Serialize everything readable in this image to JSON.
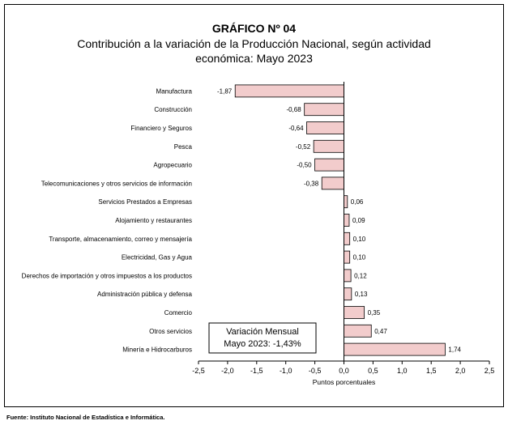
{
  "title": "GRÁFICO Nº 04",
  "subtitle": "Contribución a la variación de la Producción Nacional, según actividad económica: Mayo 2023",
  "source": "Fuente:  Instituto Nacional de Estadística e Informática.",
  "annotation": {
    "line1": "Variación Mensual",
    "line2": "Mayo 2023: -1,43%"
  },
  "colors": {
    "bar_fill": "#f2cccc",
    "bar_stroke": "#000000"
  },
  "chart_data": {
    "type": "bar",
    "orientation": "horizontal",
    "title": "GRÁFICO Nº 04",
    "subtitle": "Contribución a la variación de la Producción Nacional, según actividad económica: Mayo 2023",
    "xlabel": "Puntos porcentuales",
    "ylabel": "",
    "xlim": [
      -2.5,
      2.5
    ],
    "xticks": [
      "-2,5",
      "-2,0",
      "-1,5",
      "-1,0",
      "-0,5",
      "0,0",
      "0,5",
      "1,0",
      "1,5",
      "2,0",
      "2,5"
    ],
    "grid": false,
    "categories": [
      "Manufactura",
      "Construcción",
      "Financiero y Seguros",
      "Pesca",
      "Agropecuario",
      "Telecomunicaciones y otros servicios de información",
      "Servicios Prestados a Empresas",
      "Alojamiento y restaurantes",
      "Transporte, almacenamiento, correo y mensajería",
      "Electricidad, Gas y Agua",
      "Derechos de importación y otros impuestos a los productos",
      "Administración pública y defensa",
      "Comercio",
      "Otros servicios",
      "Minería e Hidrocarburos"
    ],
    "values": [
      -1.87,
      -0.68,
      -0.64,
      -0.52,
      -0.5,
      -0.38,
      0.06,
      0.09,
      0.1,
      0.1,
      0.12,
      0.13,
      0.35,
      0.47,
      1.74
    ],
    "labels": [
      "-1,87",
      "-0,68",
      "-0,64",
      "-0,52",
      "-0,50",
      "-0,38",
      "0,06",
      "0,09",
      "0,10",
      "0,10",
      "0,12",
      "0,13",
      "0,35",
      "0,47",
      "1,74"
    ]
  }
}
